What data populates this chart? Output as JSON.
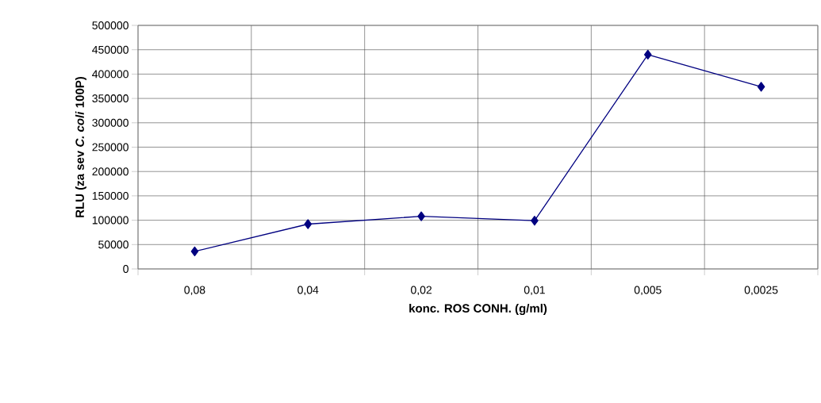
{
  "chart_data": {
    "type": "line",
    "xlabel": "konc. ROS CONH. (g/ml)",
    "ylabel": "RLU (za sev *C. coli* 100P)",
    "categories": [
      "0,08",
      "0,04",
      "0,02",
      "0,01",
      "0,005",
      "0,0025"
    ],
    "values": [
      36000,
      92000,
      108000,
      99000,
      440000,
      374000
    ],
    "color": "#000080",
    "marker": "diamond",
    "ylim": [
      0,
      500000
    ],
    "yticks": [
      0,
      50000,
      100000,
      150000,
      200000,
      250000,
      300000,
      350000,
      400000,
      450000,
      500000
    ],
    "grid": true
  }
}
